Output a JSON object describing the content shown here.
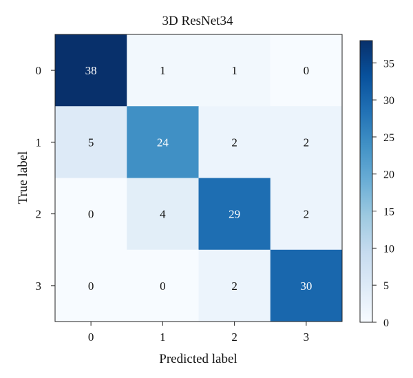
{
  "chart_data": {
    "type": "heatmap",
    "title": "3D ResNet34",
    "xlabel": "Predicted label",
    "ylabel": "True label",
    "x_categories": [
      "0",
      "1",
      "2",
      "3"
    ],
    "y_categories": [
      "0",
      "1",
      "2",
      "3"
    ],
    "values": [
      [
        38,
        1,
        1,
        0
      ],
      [
        5,
        24,
        2,
        2
      ],
      [
        0,
        4,
        29,
        2
      ],
      [
        0,
        0,
        2,
        30
      ]
    ],
    "colorbar": {
      "range": [
        0,
        38
      ],
      "ticks": [
        0,
        5,
        10,
        15,
        20,
        25,
        30,
        35
      ],
      "tick_labels": [
        "0",
        "5",
        "10",
        "15",
        "20",
        "25",
        "30",
        "35"
      ]
    },
    "colormap": "Blues",
    "grid": false
  }
}
